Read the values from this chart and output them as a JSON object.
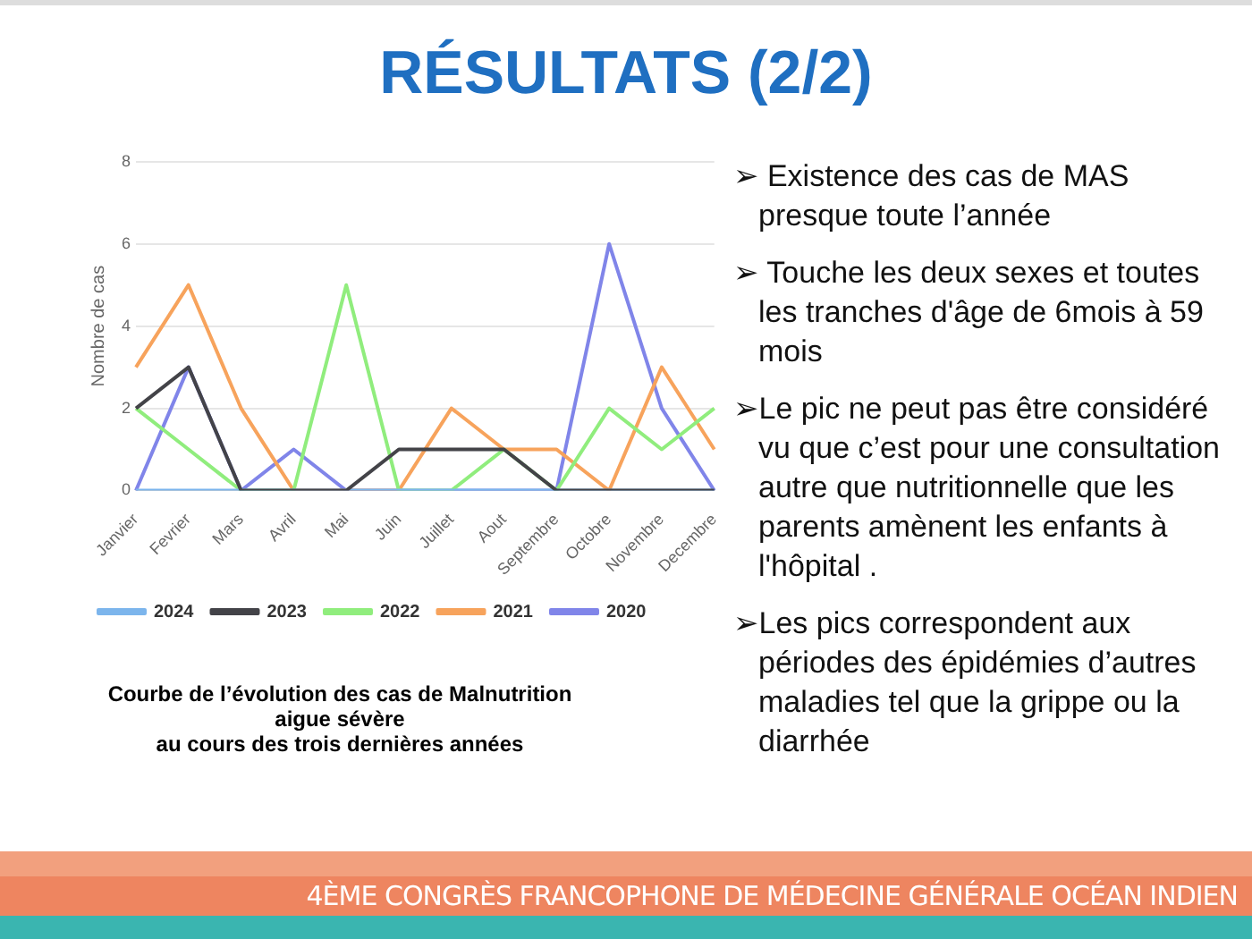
{
  "chart_data": {
    "type": "line",
    "title": "RÉSULTATS (2/2)",
    "ylabel": "Nombre de cas",
    "categories": [
      "Janvier",
      "Fevrier",
      "Mars",
      "Avril",
      "Mai",
      "Juin",
      "Juillet",
      "Aout",
      "Septembre",
      "Octobre",
      "Novembre",
      "Decembre"
    ],
    "series": [
      {
        "name": "2024",
        "color": "#7cb5ec",
        "values": [
          0,
          0,
          0,
          0,
          0,
          0,
          0,
          0,
          0,
          0,
          0,
          0
        ]
      },
      {
        "name": "2023",
        "color": "#434348",
        "values": [
          2,
          3,
          0,
          0,
          0,
          1,
          1,
          1,
          0,
          0,
          0,
          0
        ]
      },
      {
        "name": "2022",
        "color": "#90ed7d",
        "values": [
          2,
          1,
          0,
          0,
          5,
          0,
          0,
          1,
          0,
          2,
          1,
          2
        ]
      },
      {
        "name": "2021",
        "color": "#f7a35c",
        "values": [
          3,
          5,
          2,
          0,
          0,
          0,
          2,
          1,
          1,
          0,
          3,
          1
        ]
      },
      {
        "name": "2020",
        "color": "#8085e9",
        "values": [
          0,
          3,
          0,
          1,
          0,
          0,
          0,
          0,
          0,
          6,
          2,
          0
        ]
      }
    ],
    "ylim": [
      0,
      8
    ],
    "yticks": [
      0,
      2,
      4,
      6,
      8
    ],
    "grid": "y",
    "legend": "bottom",
    "marker": "none",
    "line_style": "solid",
    "annotations": [
      "Courbe de l’évolution des cas de Malnutrition\naigue sévère\nau cours des trois dernières années",
      "➢ Existence des cas de MAS presque toute l’année",
      "➢ Touche les deux sexes et toutes les tranches d'âge de 6mois à 59 mois",
      "➢Le pic ne peut pas être  considéré vu que c’est pour une consultation autre que nutritionnelle que les parents amènent les enfants à l'hôpital .",
      "➢Les pics correspondent aux périodes des épidémies d’autres maladies tel que la  grippe  ou la diarrhée",
      "4ÈME CONGRÈS FRANCOPHONE DE MÉDECINE GÉNÉRALE OCÉAN INDIEN"
    ]
  }
}
